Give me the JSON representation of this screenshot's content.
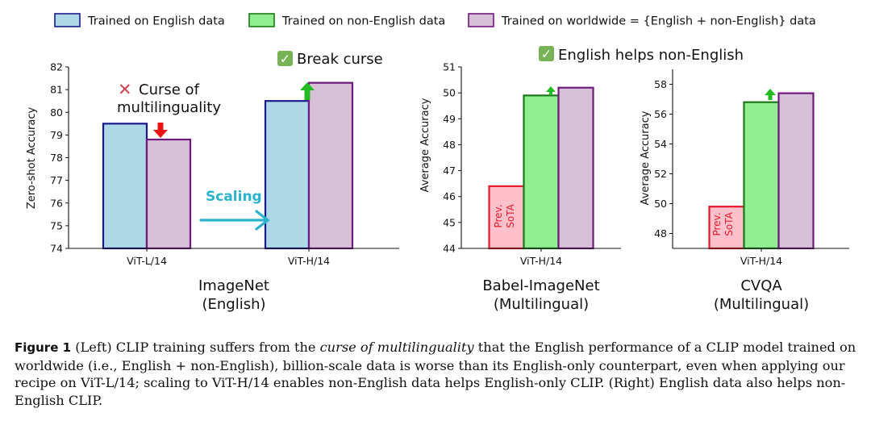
{
  "legend": {
    "english": "Trained on English data",
    "nonenglish": "Trained on non-English data",
    "worldwide": "Trained on worldwide = {English + non-English} data"
  },
  "colors": {
    "english_fill": "#add8e6",
    "english_edge": "#1a1a8c",
    "nonenglish_fill": "#90ee90",
    "nonenglish_edge": "#1a7a1a",
    "worldwide_fill": "#d8bfd8",
    "worldwide_edge": "#6e1a7a",
    "prev_fill": "#ffc0cb",
    "prev_edge": "#e01a2a",
    "arrow_green": "#22bb22",
    "arrow_red": "#ee1111",
    "scaling": "#2ab3cc",
    "check_bg": "#77b255",
    "cross": "#cc4455"
  },
  "annotations": {
    "curse_cross": "✕",
    "curse_line1": "Curse of",
    "curse_line2": "multilinguality",
    "break_check": "✓",
    "break_curse": "Break curse",
    "helps_check": "✓",
    "english_helps": "English helps non-English",
    "scaling": "Scaling",
    "prev_sota_line1": "Prev.",
    "prev_sota_line2": "SoTA"
  },
  "chart_data": [
    {
      "type": "bar",
      "panel": "imagenet",
      "title_line1": "ImageNet",
      "title_line2": "(English)",
      "ylabel": "Zero-shot Accuracy",
      "xlabel": "",
      "ylim": [
        74,
        82
      ],
      "yticks": [
        74,
        75,
        76,
        77,
        78,
        79,
        80,
        81,
        82
      ],
      "categories": [
        "ViT-L/14",
        "ViT-H/14"
      ],
      "series": [
        {
          "name": "Trained on English data",
          "values": [
            79.5,
            80.5
          ]
        },
        {
          "name": "Trained on worldwide = {English + non-English} data",
          "values": [
            78.8,
            81.3
          ]
        }
      ]
    },
    {
      "type": "bar",
      "panel": "babel",
      "title_line1": "Babel-ImageNet",
      "title_line2": "(Multilingual)",
      "ylabel": "Average Accuracy",
      "xlabel": "",
      "ylim": [
        44,
        51
      ],
      "yticks": [
        44,
        45,
        46,
        47,
        48,
        49,
        50,
        51
      ],
      "categories": [
        "ViT-H/14"
      ],
      "series": [
        {
          "name": "Prev. SoTA",
          "values": [
            46.4
          ]
        },
        {
          "name": "Trained on non-English data",
          "values": [
            49.9
          ]
        },
        {
          "name": "Trained on worldwide = {English + non-English} data",
          "values": [
            50.2
          ]
        }
      ]
    },
    {
      "type": "bar",
      "panel": "cvqa",
      "title_line1": "CVQA",
      "title_line2": "(Multilingual)",
      "ylabel": "Average Accuracy",
      "xlabel": "",
      "ylim": [
        47,
        59
      ],
      "yticks": [
        48,
        50,
        52,
        54,
        56,
        58
      ],
      "categories": [
        "ViT-H/14"
      ],
      "series": [
        {
          "name": "Prev. SoTA",
          "values": [
            49.8
          ]
        },
        {
          "name": "Trained on non-English data",
          "values": [
            56.8
          ]
        },
        {
          "name": "Trained on worldwide = {English + non-English} data",
          "values": [
            57.4
          ]
        }
      ]
    }
  ],
  "caption": {
    "label": "Figure 1",
    "part1": " (Left) CLIP training suffers from the ",
    "emph": "curse of multilinguality",
    "part2": " that the English performance of a CLIP model trained on worldwide (i.e., English + non-English), billion-scale data is worse than its English-only counterpart, even when applying our recipe on ViT-L/14; scaling to ViT-H/14 enables non-English data helps English-only CLIP. (Right) English data also helps non-English CLIP."
  }
}
